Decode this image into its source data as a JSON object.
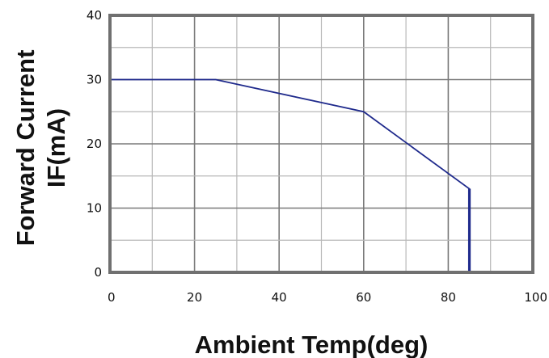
{
  "chart_data": {
    "type": "line",
    "title": "",
    "xlabel": "Ambient Temp(deg)",
    "ylabel_lines": [
      "Forward Current",
      "IF(mA)"
    ],
    "xlim": [
      0,
      100
    ],
    "ylim": [
      0,
      40
    ],
    "x_ticks": [
      0,
      20,
      40,
      60,
      80,
      100
    ],
    "y_ticks": [
      0,
      10,
      20,
      30,
      40
    ],
    "x_tick_labels": [
      "0",
      "20",
      "40",
      "60",
      "80",
      "100"
    ],
    "y_tick_labels": [
      "0",
      "10",
      "20",
      "30",
      "40"
    ],
    "grid": true,
    "grid_step": {
      "x": 10,
      "y": 5
    },
    "series": [
      {
        "x": [
          0,
          25,
          60,
          85,
          85
        ],
        "y": [
          30,
          30,
          25,
          13,
          0
        ],
        "color": "#1f2a8c"
      }
    ],
    "colors": {
      "frame": "#707070",
      "major_grid": "#7a7a7a",
      "minor_grid": "#b8b8b8"
    }
  }
}
